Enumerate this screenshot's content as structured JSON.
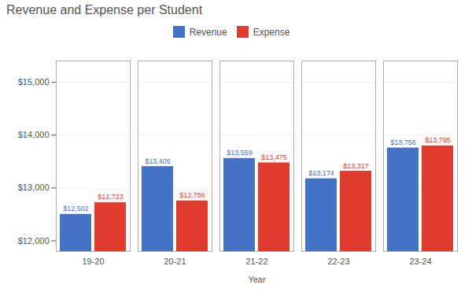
{
  "chart_data": {
    "type": "bar",
    "title": "Revenue and Expense per Student",
    "xlabel": "Year",
    "categories": [
      "19-20",
      "20-21",
      "21-22",
      "22-23",
      "23-24"
    ],
    "series": [
      {
        "name": "Revenue",
        "color": "#4472C4",
        "values": [
          12502,
          13405,
          13559,
          13174,
          13756
        ],
        "value_labels": [
          "$12,502",
          "$13,405",
          "$13,559",
          "$13,174",
          "$13,756"
        ]
      },
      {
        "name": "Expense",
        "color": "#E23B2E",
        "values": [
          12723,
          12756,
          13475,
          13317,
          13795
        ],
        "value_labels": [
          "$12,723",
          "$12,756",
          "$13,475",
          "$13,317",
          "$13,795"
        ]
      }
    ],
    "ylim": [
      11800,
      15400
    ],
    "yticks": [
      {
        "value": 12000,
        "label": "$12,000"
      },
      {
        "value": 13000,
        "label": "$13,000"
      },
      {
        "value": 14000,
        "label": "$14,000"
      },
      {
        "value": 15000,
        "label": "$15,000"
      }
    ],
    "grid": true,
    "legend": "top",
    "data_labels": true
  }
}
